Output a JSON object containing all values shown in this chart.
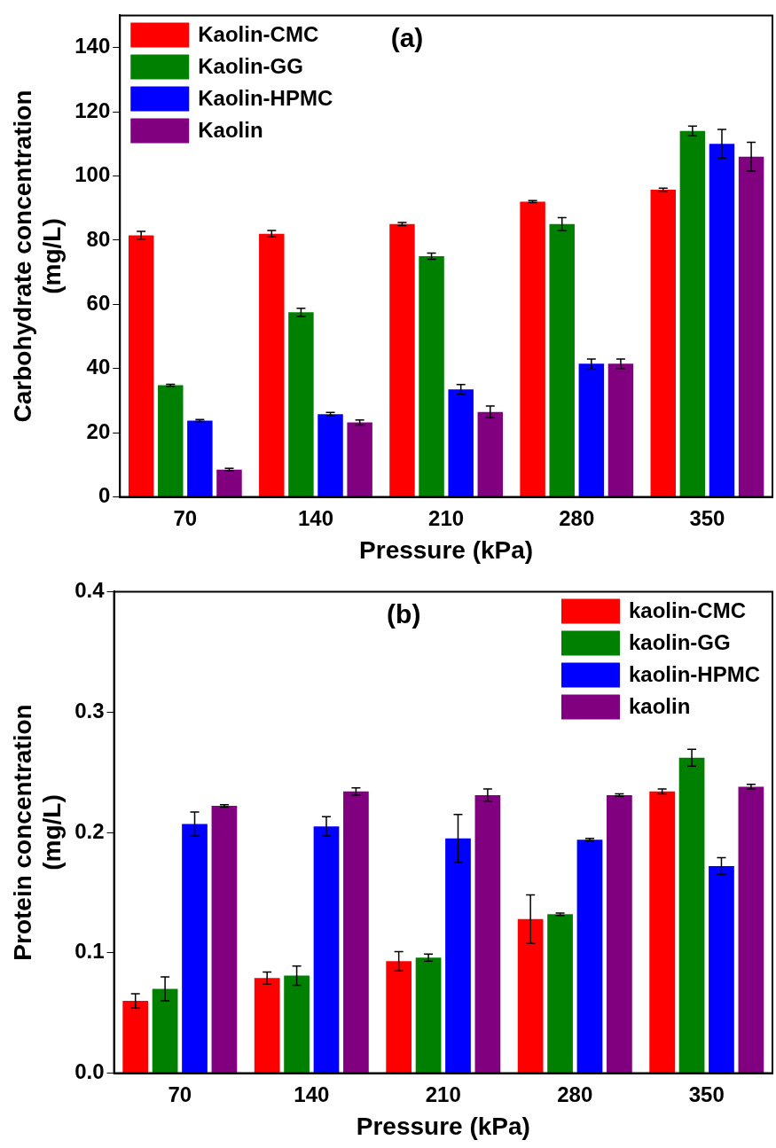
{
  "chart_data": [
    {
      "type": "bar",
      "xlabel": "Pressure (kPa)",
      "ylabel": "Carbohydrate concentration (mg/L)",
      "categories": [
        "70",
        "140",
        "210",
        "280",
        "350"
      ],
      "ylim": [
        0,
        150
      ],
      "yticks": [
        0,
        20,
        40,
        60,
        80,
        100,
        120,
        140
      ],
      "legend": "top left",
      "annotations": [
        "(a)"
      ],
      "series": [
        {
          "name": "Kaolin-CMC",
          "color": "#ff0000",
          "values": [
            81.5,
            82,
            85,
            92,
            95.7
          ],
          "errors": [
            1.2,
            1,
            0.5,
            0.3,
            0.5
          ]
        },
        {
          "name": "Kaolin-GG",
          "color": "#008000",
          "values": [
            34.8,
            57.5,
            75,
            85,
            114
          ],
          "errors": [
            0.3,
            1.3,
            1,
            2,
            1.5
          ]
        },
        {
          "name": "Kaolin-HPMC",
          "color": "#0000ff",
          "values": [
            23.8,
            25.8,
            33.5,
            41.5,
            110
          ],
          "errors": [
            0.3,
            0.5,
            1.5,
            1.5,
            4.5
          ]
        },
        {
          "name": "Kaolin",
          "color": "#800080",
          "values": [
            8.5,
            23.2,
            26.5,
            41.5,
            106
          ],
          "errors": [
            0.4,
            0.8,
            1.8,
            1.5,
            4.5
          ]
        }
      ]
    },
    {
      "type": "bar",
      "xlabel": "Pressure (kPa)",
      "ylabel": "Protein concentration (mg/L)",
      "categories": [
        "70",
        "140",
        "210",
        "280",
        "350"
      ],
      "ylim": [
        0,
        0.4
      ],
      "yticks": [
        {
          "value": 0,
          "label": "0.0"
        },
        0.1,
        0.2,
        0.3,
        0.4
      ],
      "legend": "top right",
      "annotations": [
        "(b)"
      ],
      "series": [
        {
          "name": "kaolin-CMC",
          "color": "#ff0000",
          "values": [
            0.06,
            0.079,
            0.093,
            0.128,
            0.234
          ],
          "errors": [
            0.006,
            0.005,
            0.008,
            0.02,
            0.002
          ]
        },
        {
          "name": "kaolin-GG",
          "color": "#008000",
          "values": [
            0.07,
            0.081,
            0.096,
            0.132,
            0.262
          ],
          "errors": [
            0.01,
            0.008,
            0.003,
            0.001,
            0.007
          ]
        },
        {
          "name": "kaolin-HPMC",
          "color": "#0000ff",
          "values": [
            0.207,
            0.205,
            0.195,
            0.194,
            0.172
          ],
          "errors": [
            0.01,
            0.008,
            0.02,
            0.001,
            0.007
          ]
        },
        {
          "name": "kaolin",
          "color": "#800080",
          "values": [
            0.222,
            0.234,
            0.231,
            0.231,
            0.238
          ],
          "errors": [
            0.001,
            0.003,
            0.005,
            0.001,
            0.002
          ]
        }
      ]
    }
  ]
}
